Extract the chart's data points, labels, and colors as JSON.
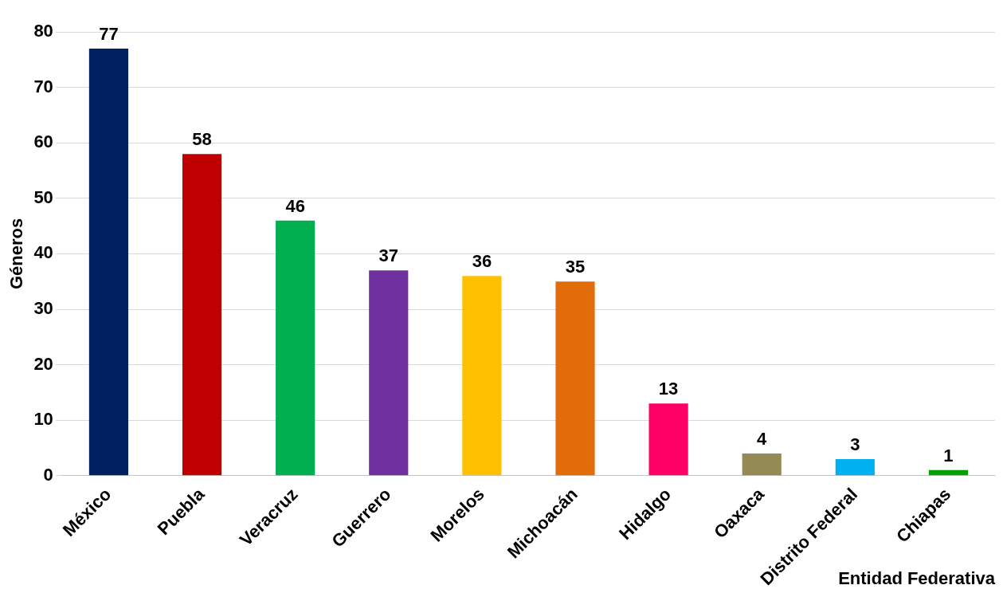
{
  "chart_data": {
    "type": "bar",
    "xlabel": "Entidad Federativa",
    "ylabel": "Géneros",
    "categories": [
      "México",
      "Puebla",
      "Veracruz",
      "Guerrero",
      "Morelos",
      "Michoacán",
      "Hidalgo",
      "Oaxaca",
      "Distrito Federal",
      "Chiapas"
    ],
    "values": [
      77,
      58,
      46,
      37,
      36,
      35,
      13,
      4,
      3,
      1
    ],
    "colors": [
      "#002060",
      "#c00000",
      "#00b050",
      "#7030a0",
      "#ffc000",
      "#e36c0a",
      "#ff0066",
      "#948a54",
      "#00b0f0",
      "#00a000"
    ],
    "ylim": [
      0,
      80
    ],
    "yticks": [
      0,
      10,
      20,
      30,
      40,
      50,
      60,
      70,
      80
    ],
    "grid": "y",
    "legend": false,
    "data_labels": true
  }
}
